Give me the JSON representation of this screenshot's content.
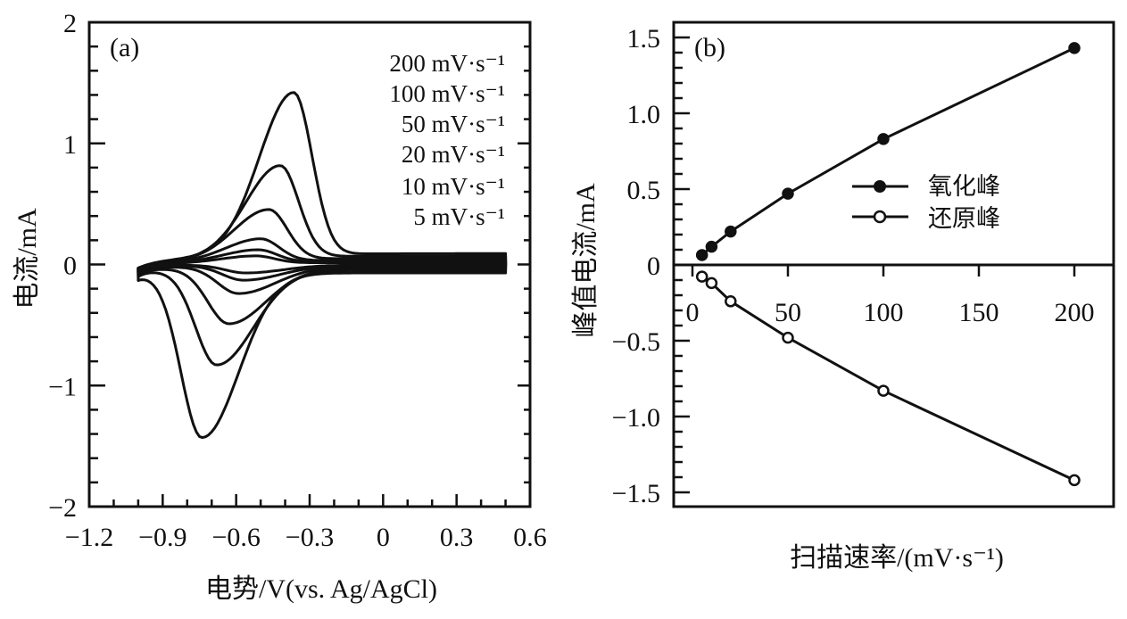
{
  "chart_data": [
    {
      "type": "line",
      "panel_label": "(a)",
      "xlabel": "电势/V(vs. Ag/AgCl)",
      "ylabel": "电流/mA",
      "xlim": [
        -1.2,
        0.6
      ],
      "ylim": [
        -2,
        2
      ],
      "xticks": [
        -1.2,
        -0.9,
        -0.6,
        -0.3,
        0,
        0.3,
        0.6
      ],
      "xtick_labels": [
        "−1.2",
        "−0.9",
        "−0.6",
        "−0.3",
        "0",
        "0.3",
        "0.6"
      ],
      "yticks": [
        -2,
        -1,
        0,
        1,
        2
      ],
      "ytick_labels": [
        "−2",
        "−1",
        "0",
        "1",
        "2"
      ],
      "legend_position": "top-right",
      "legend": [
        "200 mV·s⁻¹",
        "100 mV·s⁻¹",
        "50 mV·s⁻¹",
        "20 mV·s⁻¹",
        "10 mV·s⁻¹",
        "5 mV·s⁻¹"
      ],
      "series": [
        {
          "name": "200 mV·s⁻¹",
          "scan_rate": 200,
          "E_range": [
            -1.0,
            0.5
          ],
          "ox_peak": {
            "E": -0.365,
            "I": 1.41
          },
          "red_peak": {
            "E": -0.74,
            "I": -1.43
          },
          "anodic_tail": 0.09,
          "cathodic_tail": -0.07
        },
        {
          "name": "100 mV·s⁻¹",
          "scan_rate": 100,
          "E_range": [
            -1.0,
            0.5
          ],
          "ox_peak": {
            "E": -0.42,
            "I": 0.81
          },
          "red_peak": {
            "E": -0.68,
            "I": -0.83
          },
          "anodic_tail": 0.07,
          "cathodic_tail": -0.05
        },
        {
          "name": "50 mV·s⁻¹",
          "scan_rate": 50,
          "E_range": [
            -1.0,
            0.5
          ],
          "ox_peak": {
            "E": -0.467,
            "I": 0.45
          },
          "red_peak": {
            "E": -0.63,
            "I": -0.49
          },
          "anodic_tail": 0.05,
          "cathodic_tail": -0.035
        },
        {
          "name": "20 mV·s⁻¹",
          "scan_rate": 20,
          "E_range": [
            -1.0,
            0.5
          ],
          "ox_peak": {
            "E": -0.5,
            "I": 0.21
          },
          "red_peak": {
            "E": -0.59,
            "I": -0.24
          },
          "anodic_tail": 0.035,
          "cathodic_tail": -0.02
        },
        {
          "name": "10 mV·s⁻¹",
          "scan_rate": 10,
          "E_range": [
            -1.0,
            0.5
          ],
          "ox_peak": {
            "E": -0.51,
            "I": 0.12
          },
          "red_peak": {
            "E": -0.57,
            "I": -0.13
          },
          "anodic_tail": 0.025,
          "cathodic_tail": -0.01
        },
        {
          "name": "5 mV·s⁻¹",
          "scan_rate": 5,
          "E_range": [
            -1.0,
            0.5
          ],
          "ox_peak": {
            "E": -0.52,
            "I": 0.07
          },
          "red_peak": {
            "E": -0.56,
            "I": -0.07
          },
          "anodic_tail": 0.015,
          "cathodic_tail": -0.005
        }
      ]
    },
    {
      "type": "line",
      "panel_label": "(b)",
      "xlabel": "扫描速率/(mV·s⁻¹)",
      "ylabel": "峰值电流/mA",
      "xlim": [
        -10,
        220
      ],
      "ylim": [
        -1.6,
        1.6
      ],
      "xticks": [
        0,
        50,
        100,
        150,
        200
      ],
      "xtick_labels": [
        "0",
        "50",
        "100",
        "150",
        "200"
      ],
      "yticks": [
        -1.5,
        -1.0,
        -0.5,
        0,
        0.5,
        1.0,
        1.5
      ],
      "ytick_labels": [
        "−1.5",
        "−1.0",
        "−0.5",
        "0",
        "0.5",
        "1.0",
        "1.5"
      ],
      "legend_position": "center-right",
      "x": [
        5,
        10,
        20,
        50,
        100,
        200
      ],
      "series": [
        {
          "name": "氧化峰",
          "marker": "filled-circle",
          "values": [
            0.065,
            0.12,
            0.22,
            0.47,
            0.83,
            1.43
          ]
        },
        {
          "name": "还原峰",
          "marker": "open-circle",
          "values": [
            -0.077,
            -0.12,
            -0.24,
            -0.48,
            -0.83,
            -1.42
          ]
        }
      ]
    }
  ]
}
